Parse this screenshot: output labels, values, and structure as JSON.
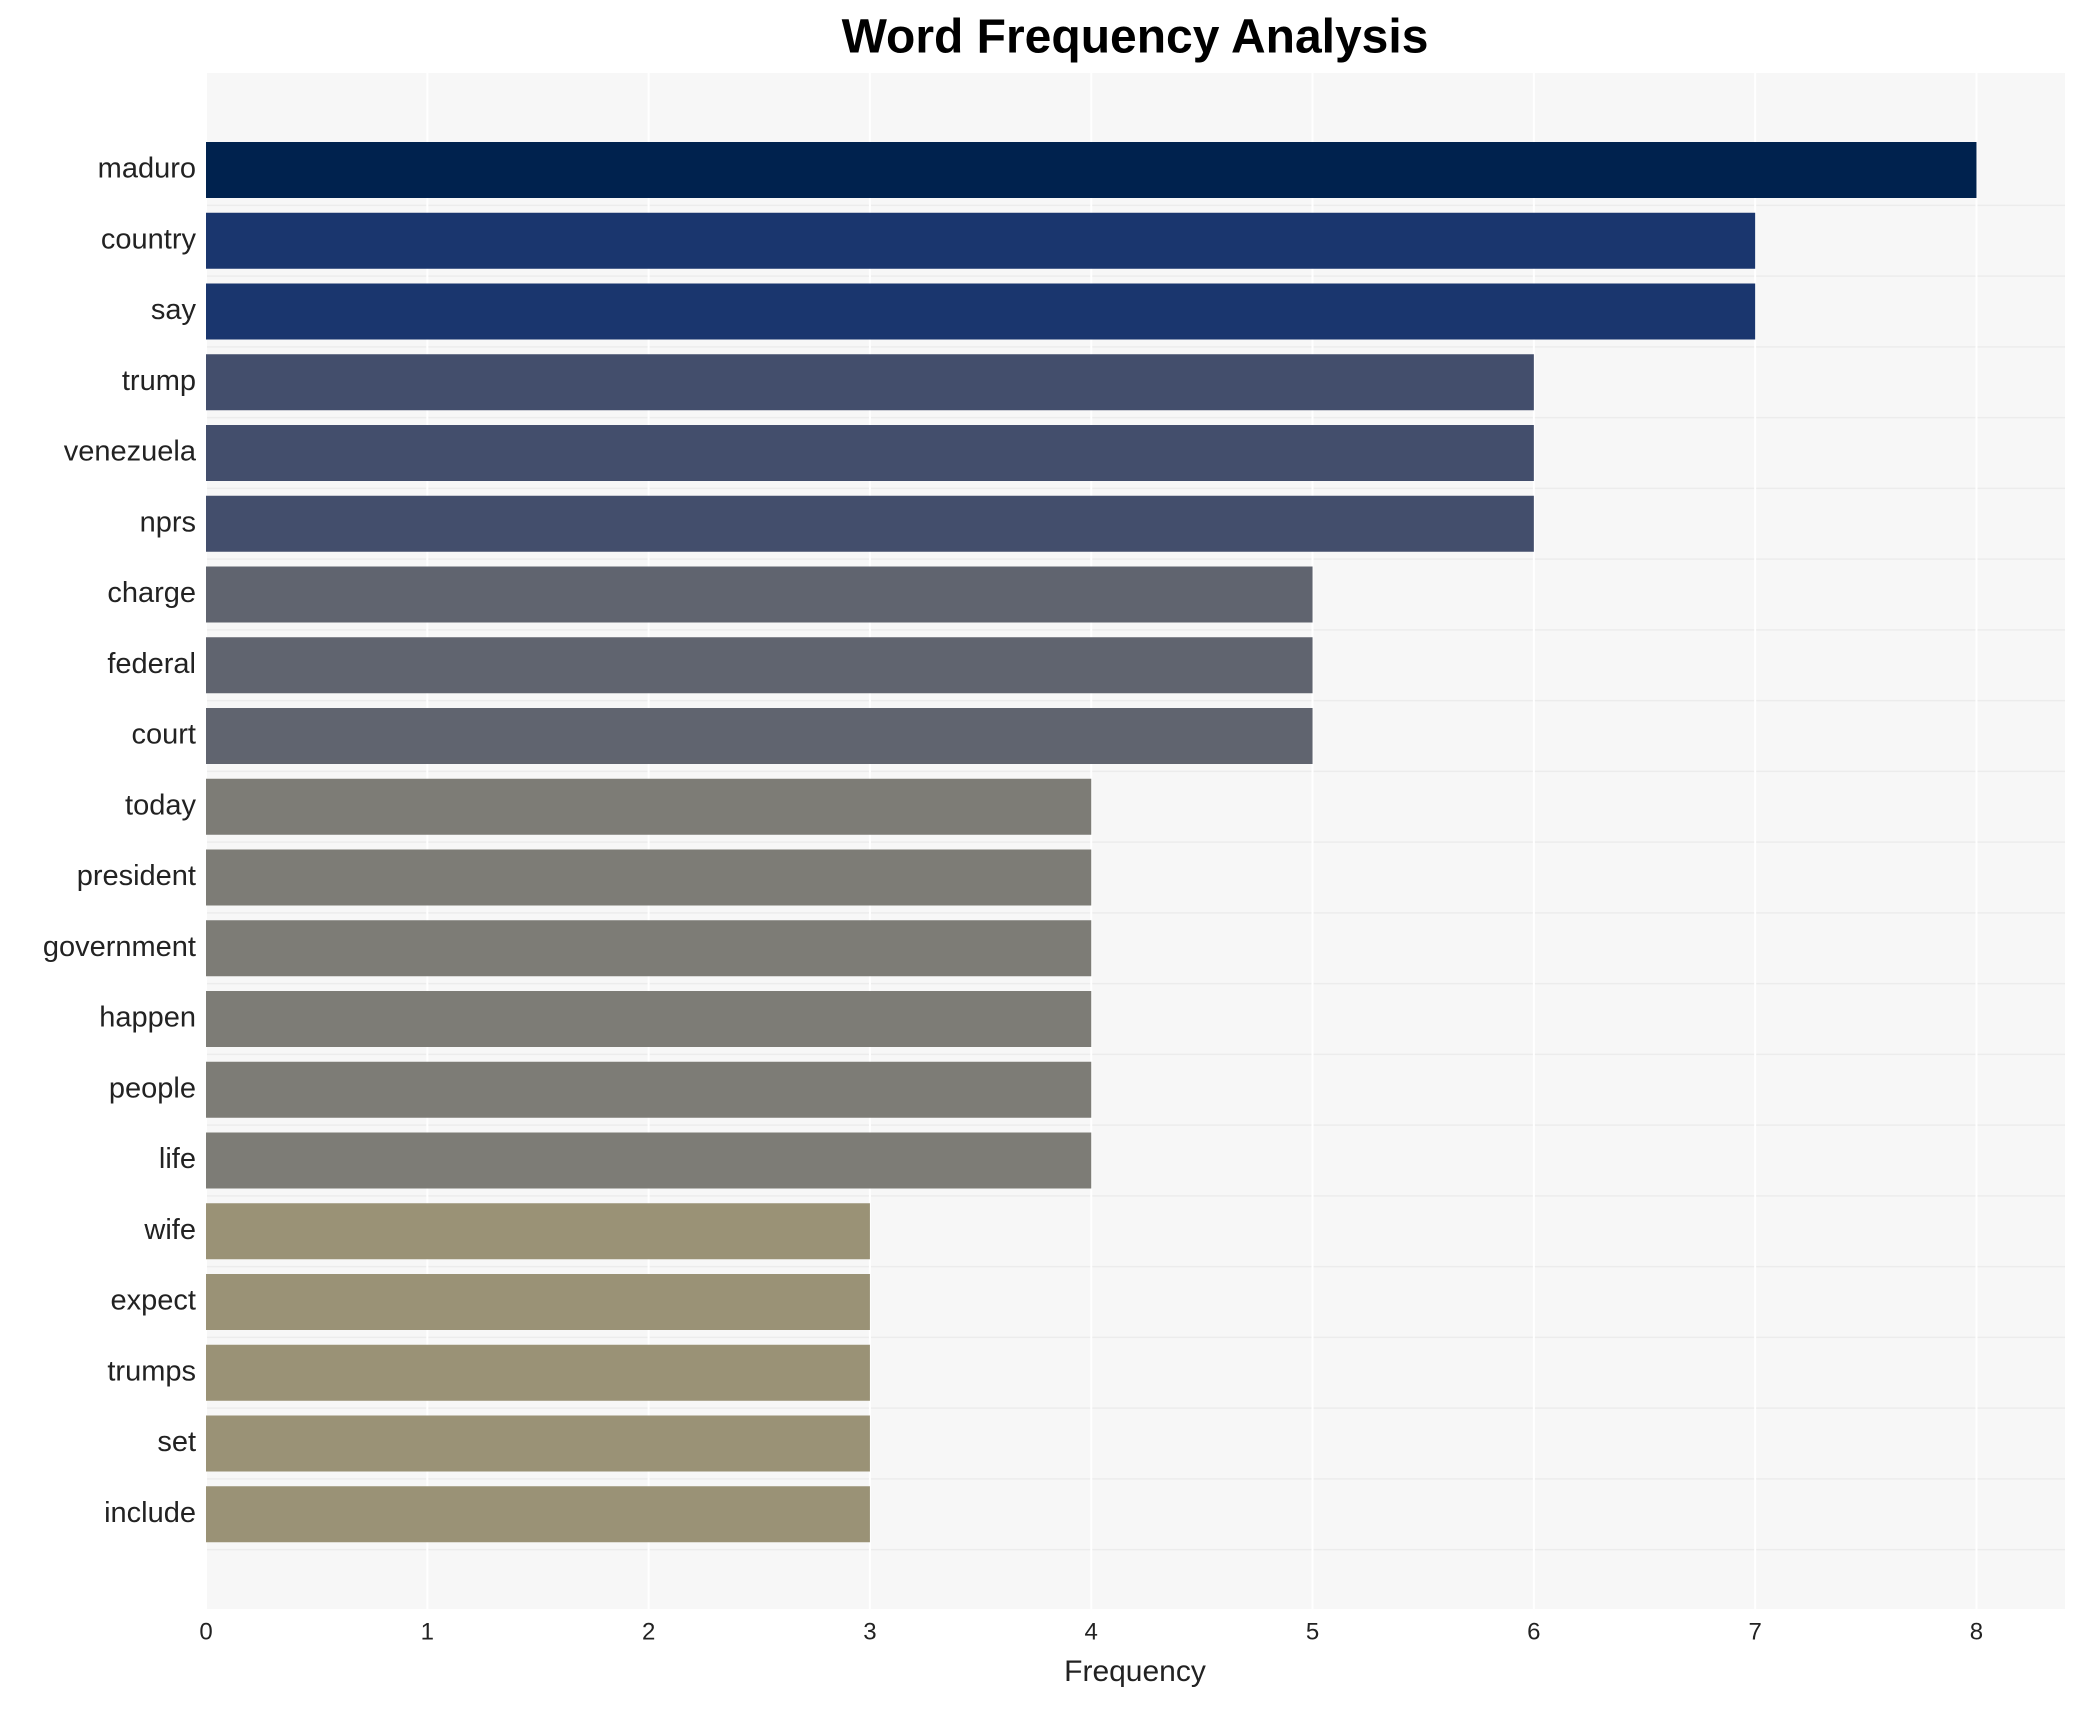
{
  "chart_data": {
    "type": "barh",
    "title": "Word Frequency Analysis",
    "xlabel": "Frequency",
    "categories": [
      "maduro",
      "country",
      "say",
      "trump",
      "venezuela",
      "nprs",
      "charge",
      "federal",
      "court",
      "today",
      "president",
      "government",
      "happen",
      "people",
      "life",
      "wife",
      "expect",
      "trumps",
      "set",
      "include"
    ],
    "values": [
      8,
      7,
      7,
      6,
      6,
      6,
      5,
      5,
      5,
      4,
      4,
      4,
      4,
      4,
      4,
      3,
      3,
      3,
      3,
      3
    ],
    "colors": [
      "#00224e",
      "#1a366e",
      "#1a366e",
      "#434e6c",
      "#434e6c",
      "#434e6c",
      "#60646f",
      "#60646f",
      "#60646f",
      "#7d7c76",
      "#7d7c76",
      "#7d7c76",
      "#7d7c76",
      "#7d7c76",
      "#7d7c76",
      "#9a9276",
      "#9a9276",
      "#9a9276",
      "#9a9276",
      "#9a9276"
    ],
    "xlim": [
      0,
      8.4
    ],
    "xticks": [
      0,
      1,
      2,
      3,
      4,
      5,
      6,
      7,
      8
    ],
    "grid": true
  }
}
